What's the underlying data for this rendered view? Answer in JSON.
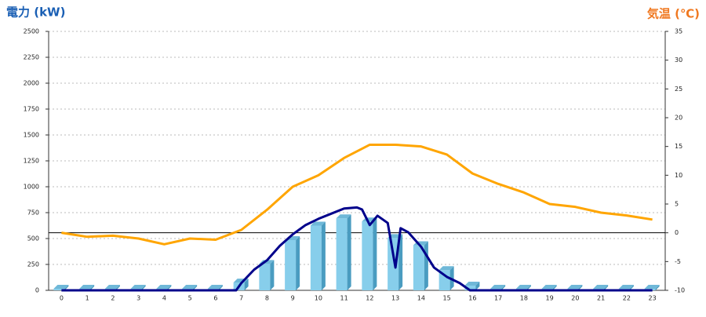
{
  "chart_data": {
    "type": "combo",
    "title_left": "電力 (kW)",
    "title_right": "気温 (℃)",
    "title_left_color": "#1a5fb4",
    "title_right_color": "#f07820",
    "categories": [
      "0",
      "1",
      "2",
      "3",
      "4",
      "5",
      "6",
      "7",
      "8",
      "9",
      "10",
      "11",
      "12",
      "13",
      "14",
      "15",
      "16",
      "17",
      "18",
      "19",
      "20",
      "21",
      "22",
      "23"
    ],
    "ylim": [
      0,
      2500
    ],
    "yticks": [
      0,
      250,
      500,
      750,
      1000,
      1250,
      1500,
      1750,
      2000,
      2250,
      2500
    ],
    "y2lim": [
      -10,
      35
    ],
    "y2ticks": [
      -10,
      -5,
      0,
      5,
      10,
      15,
      20,
      25,
      30,
      35
    ],
    "grid": true,
    "hline_y2": 0,
    "series": [
      {
        "type": "bar",
        "color": "#87ceeb",
        "values": [
          0,
          0,
          0,
          0,
          0,
          0,
          0,
          60,
          240,
          470,
          610,
          680,
          650,
          490,
          420,
          180,
          30,
          0,
          0,
          0,
          0,
          0,
          0,
          0
        ]
      },
      {
        "type": "line",
        "color": "#00008b",
        "x": [
          0,
          1,
          2,
          3,
          4,
          5,
          6,
          6.8,
          7,
          7.5,
          8,
          8.5,
          9,
          9.5,
          10,
          10.5,
          11,
          11.5,
          11.7,
          12,
          12.3,
          12.7,
          13,
          13.2,
          13.5,
          14,
          14.5,
          15,
          15.5,
          15.9,
          17,
          18,
          19,
          20,
          21,
          22,
          23
        ],
        "values": [
          0,
          0,
          0,
          0,
          0,
          0,
          0,
          0,
          70,
          200,
          290,
          430,
          540,
          630,
          690,
          740,
          790,
          800,
          780,
          630,
          720,
          650,
          220,
          600,
          560,
          420,
          220,
          130,
          70,
          0,
          0,
          0,
          0,
          0,
          0,
          0,
          0
        ]
      },
      {
        "type": "line",
        "axis": "y2",
        "color": "#ffa500",
        "values": [
          0,
          -0.7,
          -0.5,
          -1,
          -2,
          -1,
          -1.2,
          0.5,
          4,
          8,
          10,
          13,
          15.3,
          15.3,
          15,
          13.6,
          10.3,
          8.5,
          7,
          5,
          4.5,
          3.5,
          3,
          2.3
        ]
      }
    ]
  }
}
